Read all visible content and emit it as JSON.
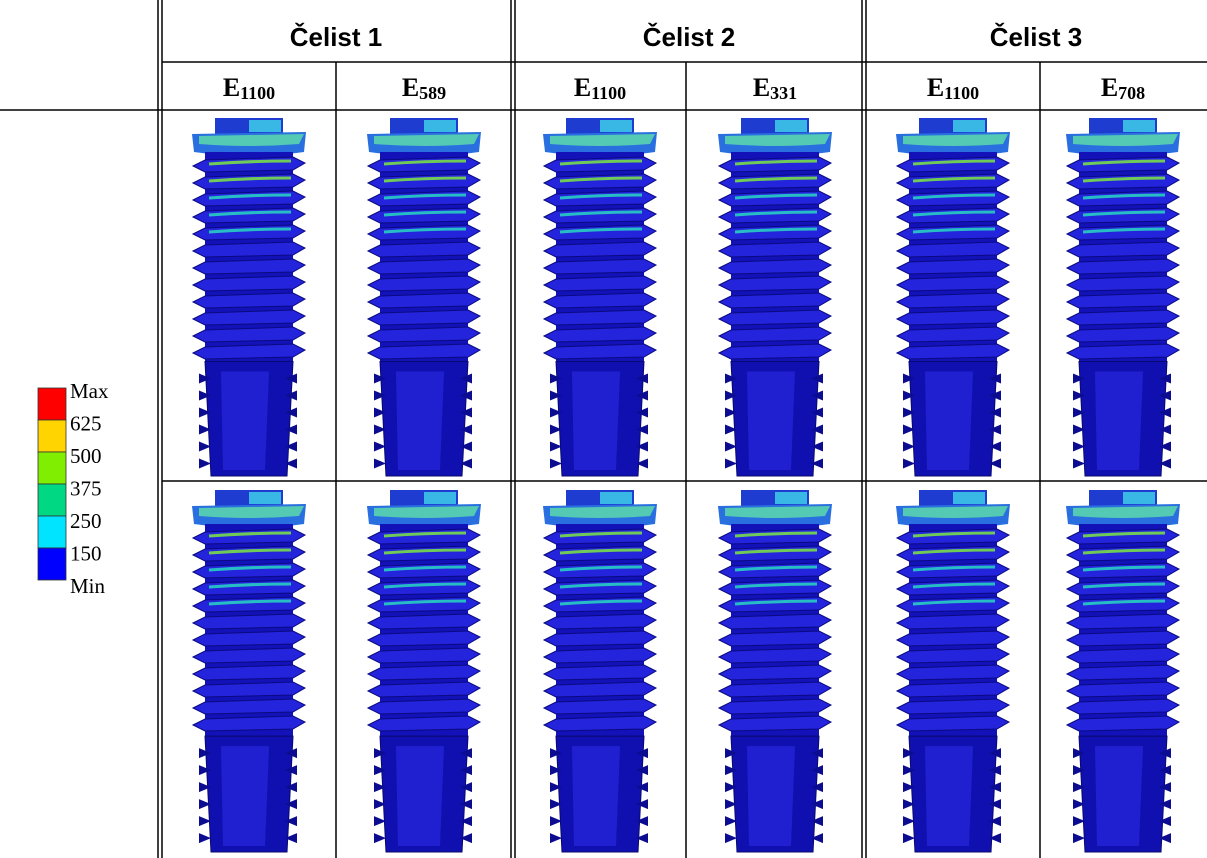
{
  "header": {
    "groups": [
      "Čelist 1",
      "Čelist 2",
      "Čelist 3"
    ],
    "columns": [
      {
        "letter": "E",
        "sub": "1100"
      },
      {
        "letter": "E",
        "sub": "589"
      },
      {
        "letter": "E",
        "sub": "1100"
      },
      {
        "letter": "E",
        "sub": "331"
      },
      {
        "letter": "E",
        "sub": "1100"
      },
      {
        "letter": "E",
        "sub": "708"
      }
    ]
  },
  "legend": {
    "labels": [
      "Max",
      "625",
      "500",
      "375",
      "250",
      "150",
      "Min"
    ],
    "colors": [
      "#ff0000",
      "#ffd400",
      "#80ee00",
      "#00d884",
      "#00e4ff",
      "#0000ff"
    ]
  }
}
